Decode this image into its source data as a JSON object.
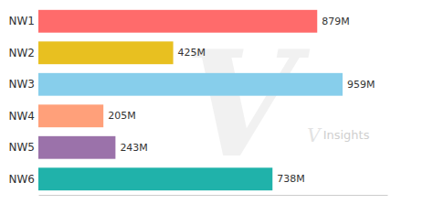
{
  "chart_data": {
    "type": "bar",
    "orientation": "horizontal",
    "categories": [
      "NW1",
      "NW2",
      "NW3",
      "NW4",
      "NW5",
      "NW6"
    ],
    "values": [
      879,
      425,
      959,
      205,
      243,
      738
    ],
    "value_labels": [
      "879M",
      "425M",
      "959M",
      "205M",
      "243M",
      "738M"
    ],
    "colors": [
      "#FF6B6B",
      "#E8C020",
      "#87CEEB",
      "#FFA07A",
      "#9B72AA",
      "#20B2AA"
    ],
    "xlim": [
      0,
      1100
    ],
    "data_labels": true,
    "tick_labels": "y",
    "grid": false,
    "annotations": [
      "V",
      "V",
      "Insights"
    ]
  }
}
